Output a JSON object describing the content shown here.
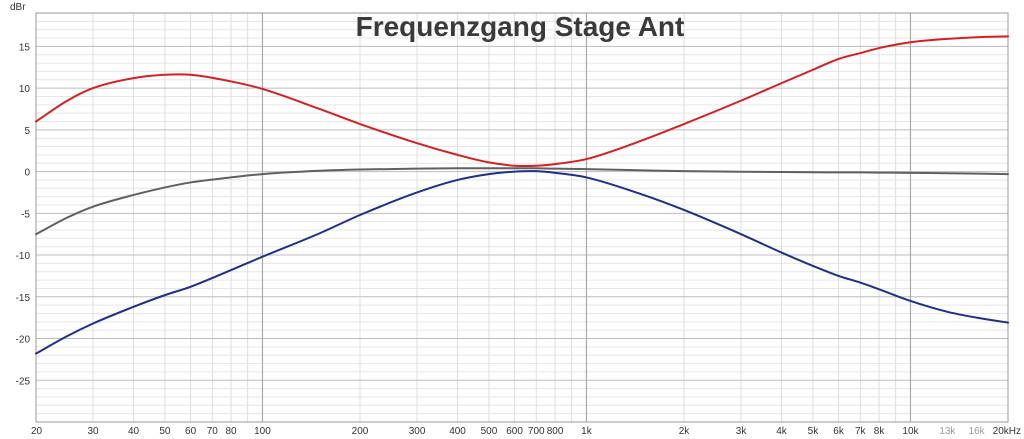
{
  "chart_data": {
    "type": "line",
    "title": "Frequenzgang Stage Ant",
    "y_unit": "dBr",
    "x_scale": "log",
    "xlim": [
      20,
      20000
    ],
    "ylim": [
      -30,
      19
    ],
    "grid": true,
    "y_ticks": [
      {
        "value": 15,
        "label": "15"
      },
      {
        "value": 10,
        "label": "10"
      },
      {
        "value": 5,
        "label": "5"
      },
      {
        "value": 0,
        "label": "0"
      },
      {
        "value": -5,
        "label": "-5"
      },
      {
        "value": -10,
        "label": "-10"
      },
      {
        "value": -15,
        "label": "-15"
      },
      {
        "value": -20,
        "label": "-20"
      },
      {
        "value": -25,
        "label": "-25"
      }
    ],
    "x_ticks": [
      {
        "value": 20,
        "label": "20"
      },
      {
        "value": 30,
        "label": "30"
      },
      {
        "value": 40,
        "label": "40"
      },
      {
        "value": 50,
        "label": "50"
      },
      {
        "value": 60,
        "label": "60"
      },
      {
        "value": 70,
        "label": "70"
      },
      {
        "value": 80,
        "label": "80"
      },
      {
        "value": 100,
        "label": "100"
      },
      {
        "value": 200,
        "label": "200"
      },
      {
        "value": 300,
        "label": "300"
      },
      {
        "value": 400,
        "label": "400"
      },
      {
        "value": 500,
        "label": "500"
      },
      {
        "value": 600,
        "label": "600"
      },
      {
        "value": 700,
        "label": "700"
      },
      {
        "value": 800,
        "label": "800"
      },
      {
        "value": 1000,
        "label": "1k"
      },
      {
        "value": 2000,
        "label": "2k"
      },
      {
        "value": 3000,
        "label": "3k"
      },
      {
        "value": 4000,
        "label": "4k"
      },
      {
        "value": 5000,
        "label": "5k"
      },
      {
        "value": 6000,
        "label": "6k"
      },
      {
        "value": 7000,
        "label": "7k"
      },
      {
        "value": 8000,
        "label": "8k"
      },
      {
        "value": 10000,
        "label": "10k"
      },
      {
        "value": 13000,
        "label": "13k",
        "faint": true
      },
      {
        "value": 16000,
        "label": "16k",
        "faint": true
      },
      {
        "value": 20000,
        "label": "20kHz"
      }
    ],
    "series": [
      {
        "color": "#d42020",
        "x": [
          20,
          25,
          30,
          40,
          50,
          60,
          80,
          100,
          150,
          200,
          300,
          400,
          500,
          600,
          700,
          800,
          1000,
          1500,
          2000,
          3000,
          4000,
          5000,
          6000,
          7000,
          8000,
          10000,
          13000,
          16000,
          20000
        ],
        "y": [
          6,
          8.5,
          10,
          11.2,
          11.6,
          11.6,
          10.8,
          9.9,
          7.5,
          5.7,
          3.4,
          2.0,
          1.1,
          0.7,
          0.7,
          0.9,
          1.5,
          3.8,
          5.7,
          8.5,
          10.6,
          12.2,
          13.5,
          14.2,
          14.8,
          15.5,
          15.9,
          16.1,
          16.2
        ]
      },
      {
        "color": "#606060",
        "x": [
          20,
          25,
          30,
          40,
          50,
          60,
          80,
          100,
          150,
          200,
          300,
          400,
          500,
          600,
          700,
          800,
          1000,
          1500,
          2000,
          3000,
          4000,
          5000,
          6000,
          7000,
          8000,
          10000,
          13000,
          16000,
          20000
        ],
        "y": [
          -7.5,
          -5.5,
          -4.2,
          -2.8,
          -1.9,
          -1.3,
          -0.7,
          -0.3,
          0.1,
          0.25,
          0.35,
          0.4,
          0.4,
          0.4,
          0.4,
          0.35,
          0.3,
          0.15,
          0.05,
          -0.02,
          -0.05,
          -0.08,
          -0.1,
          -0.1,
          -0.12,
          -0.15,
          -0.2,
          -0.25,
          -0.3
        ]
      },
      {
        "color": "#1f2f8a",
        "x": [
          20,
          25,
          30,
          40,
          50,
          60,
          80,
          100,
          150,
          200,
          300,
          400,
          500,
          600,
          700,
          800,
          1000,
          1500,
          2000,
          3000,
          4000,
          5000,
          6000,
          7000,
          8000,
          10000,
          13000,
          16000,
          20000
        ],
        "y": [
          -21.8,
          -19.7,
          -18.2,
          -16.2,
          -14.8,
          -13.8,
          -11.8,
          -10.2,
          -7.4,
          -5.2,
          -2.5,
          -1.0,
          -0.3,
          0.0,
          0.05,
          -0.15,
          -0.7,
          -2.8,
          -4.6,
          -7.5,
          -9.7,
          -11.3,
          -12.5,
          -13.3,
          -14.1,
          -15.5,
          -16.8,
          -17.5,
          -18.1
        ]
      }
    ]
  }
}
